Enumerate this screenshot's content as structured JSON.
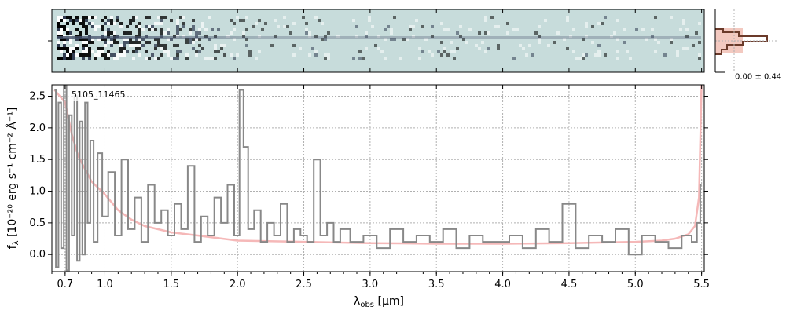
{
  "chart_data": {
    "type": "line",
    "object_id": "5105_11465",
    "xlabel_main": "λ",
    "xlabel_sub": "obs",
    "xlabel_unit": " [μm]",
    "ylabel_main": "f",
    "ylabel_sub": "λ",
    "ylabel_unit": " [10⁻²⁰ erg s⁻¹ cm⁻² Å⁻¹]",
    "profile_label": "0.00 ± 0.44",
    "xlim": [
      0.6,
      5.52
    ],
    "ylim": [
      -0.27,
      2.68
    ],
    "x_ticks": [
      {
        "value": 0.7,
        "label": "0.7"
      },
      {
        "value": 1.0,
        "label": "1.0"
      },
      {
        "value": 1.5,
        "label": "1.5"
      },
      {
        "value": 2.0,
        "label": "2.0"
      },
      {
        "value": 2.5,
        "label": "2.5"
      },
      {
        "value": 3.0,
        "label": "3.0"
      },
      {
        "value": 3.5,
        "label": "3.5"
      },
      {
        "value": 4.0,
        "label": "4.0"
      },
      {
        "value": 4.5,
        "label": "4.5"
      },
      {
        "value": 5.0,
        "label": "5.0"
      },
      {
        "value": 5.5,
        "label": "5.5"
      }
    ],
    "y_ticks": [
      {
        "value": 0.0,
        "label": "0.0"
      },
      {
        "value": 0.5,
        "label": "0.5"
      },
      {
        "value": 1.0,
        "label": "1.0"
      },
      {
        "value": 1.5,
        "label": "1.5"
      },
      {
        "value": 2.0,
        "label": "2.0"
      },
      {
        "value": 2.5,
        "label": "2.5"
      }
    ],
    "grid": true,
    "series": [
      {
        "kind": "flux",
        "color": "#888888",
        "x": [
          0.62,
          0.64,
          0.66,
          0.68,
          0.7,
          0.72,
          0.74,
          0.76,
          0.78,
          0.8,
          0.82,
          0.84,
          0.86,
          0.88,
          0.9,
          0.93,
          0.96,
          1.0,
          1.05,
          1.1,
          1.15,
          1.2,
          1.25,
          1.3,
          1.35,
          1.4,
          1.45,
          1.5,
          1.55,
          1.6,
          1.65,
          1.7,
          1.75,
          1.8,
          1.85,
          1.9,
          1.95,
          2.0,
          2.03,
          2.06,
          2.1,
          2.15,
          2.2,
          2.25,
          2.3,
          2.35,
          2.4,
          2.45,
          2.5,
          2.55,
          2.6,
          2.65,
          2.7,
          2.75,
          2.8,
          2.9,
          3.0,
          3.1,
          3.2,
          3.3,
          3.4,
          3.5,
          3.6,
          3.7,
          3.8,
          3.9,
          4.0,
          4.1,
          4.2,
          4.3,
          4.4,
          4.5,
          4.6,
          4.7,
          4.8,
          4.9,
          5.0,
          5.1,
          5.2,
          5.3,
          5.4,
          5.45,
          5.48,
          5.5
        ],
        "y": [
          2.6,
          -0.2,
          2.4,
          0.1,
          2.7,
          -0.25,
          2.2,
          0.3,
          2.5,
          -0.1,
          2.1,
          0.0,
          2.4,
          0.5,
          1.8,
          0.2,
          1.6,
          0.6,
          1.3,
          0.3,
          1.5,
          0.4,
          0.9,
          0.2,
          1.1,
          0.5,
          0.7,
          0.3,
          0.8,
          0.4,
          1.4,
          0.2,
          0.6,
          0.3,
          0.9,
          0.5,
          1.1,
          0.3,
          2.6,
          1.7,
          0.4,
          0.7,
          0.2,
          0.5,
          0.3,
          0.8,
          0.2,
          0.4,
          0.3,
          0.2,
          1.5,
          0.3,
          0.5,
          0.2,
          0.4,
          0.2,
          0.3,
          0.1,
          0.4,
          0.2,
          0.3,
          0.2,
          0.4,
          0.1,
          0.3,
          0.2,
          0.2,
          0.3,
          0.1,
          0.4,
          0.2,
          0.8,
          0.1,
          0.3,
          0.2,
          0.4,
          0.0,
          0.3,
          0.2,
          0.1,
          0.3,
          0.2,
          0.5,
          1.1
        ]
      },
      {
        "kind": "error",
        "color": "#f5b8b8",
        "x": [
          0.62,
          0.7,
          0.75,
          0.8,
          0.85,
          0.9,
          1.0,
          1.1,
          1.2,
          1.3,
          1.5,
          1.7,
          2.0,
          2.5,
          3.0,
          3.5,
          4.0,
          4.5,
          5.0,
          5.2,
          5.3,
          5.4,
          5.45,
          5.48,
          5.5
        ],
        "y": [
          2.6,
          2.4,
          1.9,
          1.55,
          1.35,
          1.15,
          0.95,
          0.7,
          0.55,
          0.45,
          0.35,
          0.3,
          0.22,
          0.2,
          0.18,
          0.17,
          0.17,
          0.18,
          0.2,
          0.22,
          0.25,
          0.32,
          0.45,
          0.9,
          2.7
        ]
      }
    ],
    "colors": {
      "flux": "#888888",
      "error": "#f5b8b8",
      "grid": "#b0b0b0",
      "spectrum_bg": "#c7dcdb",
      "profile": "#6b3a2a",
      "profile_fill": "#f3c9c0"
    }
  }
}
